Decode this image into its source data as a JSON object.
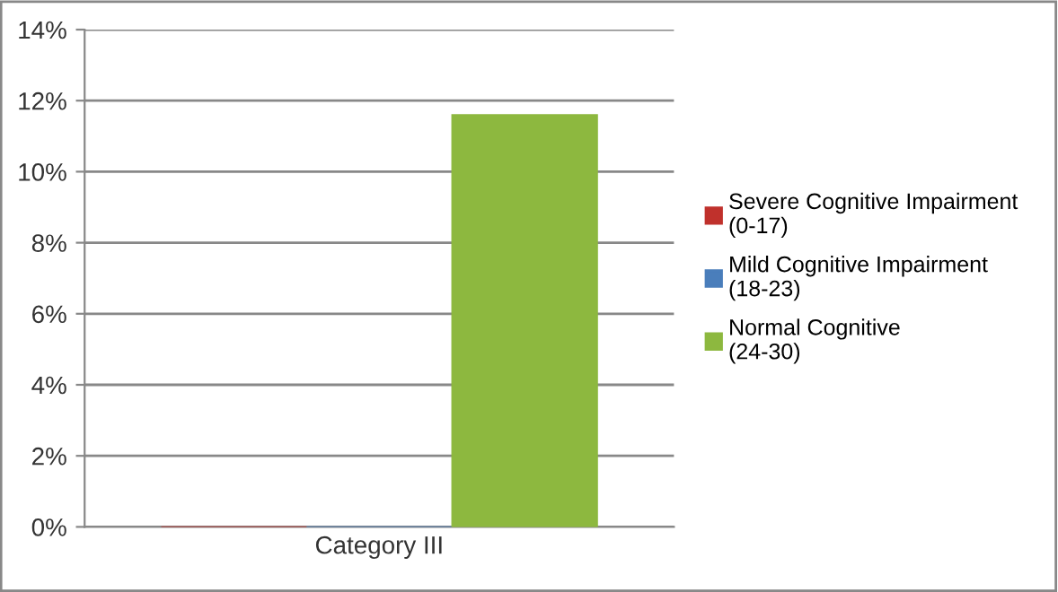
{
  "chart_data": {
    "type": "bar",
    "categories": [
      "Category III"
    ],
    "series": [
      {
        "name": "Severe Cognitive Impairment\n(0-17)",
        "color": "#c0312c",
        "values": [
          0
        ]
      },
      {
        "name": "Mild Cognitive Impairment\n(18-23)",
        "color": "#4a7ebb",
        "values": [
          0
        ]
      },
      {
        "name": "Normal Cognitive\n(24-30)",
        "color": "#8db83f",
        "values": [
          11.6
        ]
      }
    ],
    "ylim": [
      0,
      14
    ],
    "yticks": [
      {
        "value": 0,
        "label": "0%"
      },
      {
        "value": 2,
        "label": "2%"
      },
      {
        "value": 4,
        "label": "4%"
      },
      {
        "value": 6,
        "label": "6%"
      },
      {
        "value": 8,
        "label": "8%"
      },
      {
        "value": 10,
        "label": "10%"
      },
      {
        "value": 12,
        "label": "12%"
      },
      {
        "value": 14,
        "label": "14%"
      }
    ],
    "grid": "y",
    "legend": "right"
  }
}
